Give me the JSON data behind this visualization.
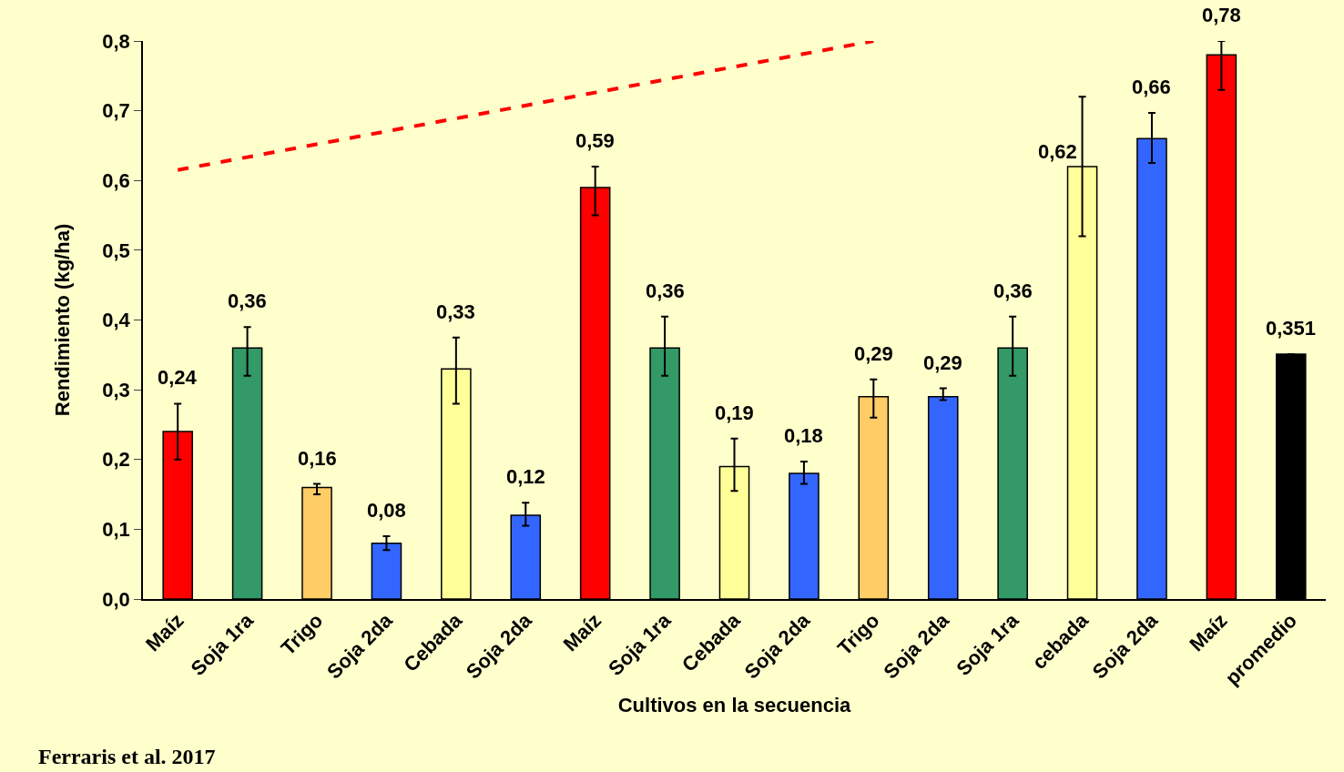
{
  "chart_data": {
    "type": "bar",
    "xlabel": "Cultivos en la secuencia",
    "ylabel": "Rendimiento (kg/ha)",
    "categories": [
      "Maíz",
      "Soja 1ra",
      "Trigo",
      "Soja 2da",
      "Cebada",
      "Soja 2da",
      "Maíz",
      "Soja 1ra",
      "Cebada",
      "Soja 2da",
      "Trigo",
      "Soja 2da",
      "Soja 1ra",
      "cebada",
      "Soja 2da",
      "Maíz",
      "promedio"
    ],
    "values": [
      0.24,
      0.36,
      0.16,
      0.08,
      0.33,
      0.12,
      0.59,
      0.36,
      0.19,
      0.18,
      0.29,
      0.29,
      0.36,
      0.62,
      0.66,
      0.78,
      0.351
    ],
    "colors": [
      "#ff0000",
      "#339966",
      "#ffcc66",
      "#3366ff",
      "#ffff99",
      "#3366ff",
      "#ff0000",
      "#339966",
      "#ffff99",
      "#3366ff",
      "#ffcc66",
      "#3366ff",
      "#339966",
      "#ffff99",
      "#3366ff",
      "#ff0000",
      "#000000"
    ],
    "value_labels": [
      "0,24",
      "0,36",
      "0,16",
      "0,08",
      "0,33",
      "0,12",
      "0,59",
      "0,36",
      "0,19",
      "0,18",
      "0,29",
      "0,29",
      "0,36",
      "0,62",
      "0,66",
      "0,78",
      "0,351"
    ],
    "errors": [
      [
        0.2,
        0.28
      ],
      [
        0.32,
        0.39
      ],
      [
        0.15,
        0.165
      ],
      [
        0.07,
        0.09
      ],
      [
        0.28,
        0.375
      ],
      [
        0.105,
        0.138
      ],
      [
        0.55,
        0.62
      ],
      [
        0.32,
        0.405
      ],
      [
        0.155,
        0.23
      ],
      [
        0.165,
        0.197
      ],
      [
        0.26,
        0.315
      ],
      [
        0.285,
        0.302
      ],
      [
        0.32,
        0.405
      ],
      [
        0.52,
        0.72
      ],
      [
        0.625,
        0.697
      ],
      [
        0.73,
        0.8
      ],
      null
    ],
    "series": [
      {
        "type": "line",
        "values": [
          0.615,
          null,
          null,
          null,
          null,
          null,
          null,
          null,
          null,
          null,
          0.8,
          null,
          null,
          null,
          null,
          null,
          null
        ],
        "color": "#ff0000",
        "line_style": "dashed"
      }
    ],
    "ylim": [
      0,
      0.8
    ],
    "yticks": [
      {
        "value": 0,
        "label": "0,0"
      },
      {
        "value": 0.1,
        "label": "0,1"
      },
      {
        "value": 0.2,
        "label": "0,2"
      },
      {
        "value": 0.3,
        "label": "0,3"
      },
      {
        "value": 0.4,
        "label": "0,4"
      },
      {
        "value": 0.5,
        "label": "0,5"
      },
      {
        "value": 0.6,
        "label": "0,6"
      },
      {
        "value": 0.7,
        "label": "0,7"
      },
      {
        "value": 0.8,
        "label": "0,8"
      }
    ],
    "annotations": [
      "Ferraris et al. 2017"
    ]
  }
}
